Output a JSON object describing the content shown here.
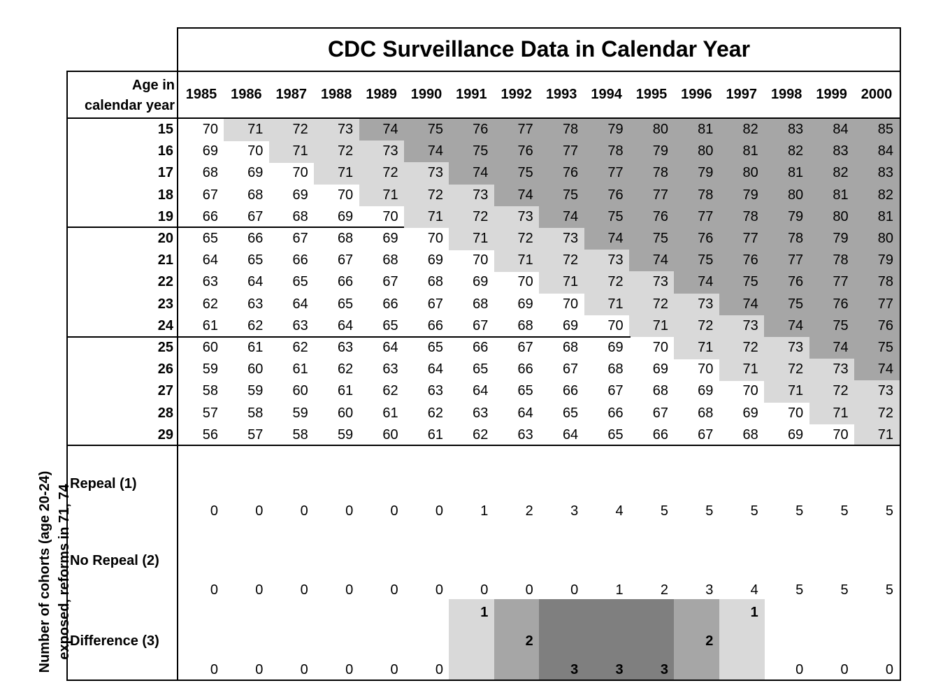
{
  "title": "CDC Surveillance Data in Calendar Year",
  "age_header": [
    "Age in",
    "calendar year"
  ],
  "years": [
    "1985",
    "1986",
    "1987",
    "1988",
    "1989",
    "1990",
    "1991",
    "1992",
    "1993",
    "1994",
    "1995",
    "1996",
    "1997",
    "1998",
    "1999",
    "2000"
  ],
  "ages": [
    "15",
    "16",
    "17",
    "18",
    "19",
    "20",
    "21",
    "22",
    "23",
    "24",
    "25",
    "26",
    "27",
    "28",
    "29"
  ],
  "grid_values": [
    [
      70,
      71,
      72,
      73,
      74,
      75,
      76,
      77,
      78,
      79,
      80,
      81,
      82,
      83,
      84,
      85
    ],
    [
      69,
      70,
      71,
      72,
      73,
      74,
      75,
      76,
      77,
      78,
      79,
      80,
      81,
      82,
      83,
      84
    ],
    [
      68,
      69,
      70,
      71,
      72,
      73,
      74,
      75,
      76,
      77,
      78,
      79,
      80,
      81,
      82,
      83
    ],
    [
      67,
      68,
      69,
      70,
      71,
      72,
      73,
      74,
      75,
      76,
      77,
      78,
      79,
      80,
      81,
      82
    ],
    [
      66,
      67,
      68,
      69,
      70,
      71,
      72,
      73,
      74,
      75,
      76,
      77,
      78,
      79,
      80,
      81
    ],
    [
      65,
      66,
      67,
      68,
      69,
      70,
      71,
      72,
      73,
      74,
      75,
      76,
      77,
      78,
      79,
      80
    ],
    [
      64,
      65,
      66,
      67,
      68,
      69,
      70,
      71,
      72,
      73,
      74,
      75,
      76,
      77,
      78,
      79
    ],
    [
      63,
      64,
      65,
      66,
      67,
      68,
      69,
      70,
      71,
      72,
      73,
      74,
      75,
      76,
      77,
      78
    ],
    [
      62,
      63,
      64,
      65,
      66,
      67,
      68,
      69,
      70,
      71,
      72,
      73,
      74,
      75,
      76,
      77
    ],
    [
      61,
      62,
      63,
      64,
      65,
      66,
      67,
      68,
      69,
      70,
      71,
      72,
      73,
      74,
      75,
      76
    ],
    [
      60,
      61,
      62,
      63,
      64,
      65,
      66,
      67,
      68,
      69,
      70,
      71,
      72,
      73,
      74,
      75
    ],
    [
      59,
      60,
      61,
      62,
      63,
      64,
      65,
      66,
      67,
      68,
      69,
      70,
      71,
      72,
      73,
      74
    ],
    [
      58,
      59,
      60,
      61,
      62,
      63,
      64,
      65,
      66,
      67,
      68,
      69,
      70,
      71,
      72,
      73
    ],
    [
      57,
      58,
      59,
      60,
      61,
      62,
      63,
      64,
      65,
      66,
      67,
      68,
      69,
      70,
      71,
      72
    ],
    [
      56,
      57,
      58,
      59,
      60,
      61,
      62,
      63,
      64,
      65,
      66,
      67,
      68,
      69,
      70,
      71
    ]
  ],
  "shading_thresholds": {
    "light": 71,
    "dark": 74
  },
  "colors": {
    "light": "#d9d9d9",
    "medium": "#a6a6a6",
    "dark": "#7f7f7f",
    "cell_dark": "#a6a6a6"
  },
  "summary_rows": [
    {
      "label": "Repeal (1)",
      "values": [
        0,
        0,
        0,
        0,
        0,
        0,
        1,
        2,
        3,
        4,
        5,
        5,
        5,
        5,
        5,
        5
      ]
    },
    {
      "label": "No Repeal (2)",
      "values": [
        0,
        0,
        0,
        0,
        0,
        0,
        0,
        0,
        0,
        1,
        2,
        3,
        4,
        5,
        5,
        5
      ]
    },
    {
      "label": "Difference (3)",
      "values": [
        0,
        0,
        0,
        0,
        0,
        0,
        1,
        2,
        3,
        3,
        3,
        2,
        1,
        0,
        0,
        0
      ]
    }
  ],
  "vertical_label": [
    "Number of cohorts (age 20-24)",
    "exposed, reforms in 71, 74"
  ]
}
